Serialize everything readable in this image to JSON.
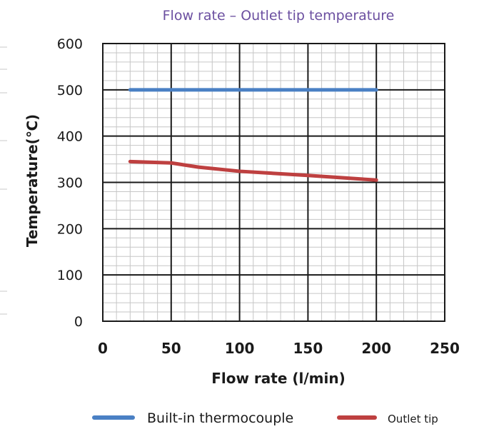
{
  "chart_data": {
    "type": "line",
    "title": "Flow rate – Outlet tip temperature",
    "xlabel": "Flow rate (l/min)",
    "ylabel": "Temperature(℃)",
    "xlim": [
      0,
      250
    ],
    "ylim": [
      0,
      600
    ],
    "x_ticks": [
      0,
      50,
      100,
      150,
      200,
      250
    ],
    "y_ticks": [
      0,
      100,
      200,
      300,
      400,
      500,
      600
    ],
    "x_tick_labels": [
      "0",
      "50",
      "100",
      "150",
      "200",
      "250"
    ],
    "y_tick_labels": [
      "0",
      "100",
      "200",
      "300",
      "400",
      "500",
      "600"
    ],
    "grid": true,
    "legend_position": "bottom",
    "series": [
      {
        "name": "Built-in thermocouple",
        "color": "#4a80c4",
        "x": [
          20,
          50,
          100,
          150,
          200
        ],
        "y": [
          500,
          500,
          500,
          500,
          500
        ]
      },
      {
        "name": "Outlet tip",
        "color": "#be4040",
        "x": [
          20,
          50,
          70,
          100,
          150,
          200
        ],
        "y": [
          345,
          342,
          333,
          324,
          315,
          305
        ]
      }
    ],
    "title_color": "#6b4fa0"
  }
}
